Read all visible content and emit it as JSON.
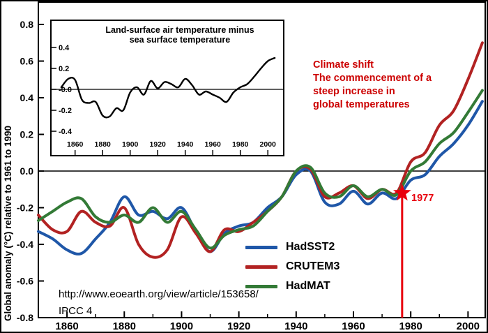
{
  "annotations": {
    "climate_shift_lines": [
      "Climate shift",
      "The commencement of a",
      "steep increase in",
      "global temperatures"
    ],
    "source_url": "http://www.eoearth.org/view/article/153658/",
    "source_ref": "IPCC 4"
  },
  "chart_data": [
    {
      "type": "line",
      "title": "",
      "xlabel": "",
      "ylabel": "Global anomaly (°C)  relative to 1961 to 1990",
      "xlim": [
        1850,
        2006
      ],
      "ylim": [
        -0.8,
        0.8
      ],
      "grid": false,
      "legend_position": "lower right",
      "x_ticks": [
        1860,
        1880,
        1900,
        1920,
        1940,
        1960,
        1980,
        2000
      ],
      "y_ticks": [
        0.8,
        0.6,
        0.4,
        0.2,
        0.0,
        -0.2,
        -0.4,
        -0.6,
        -0.8
      ],
      "y_tick_labels": [
        "0.8",
        "0.6",
        "0.4",
        "0.2",
        "0.0",
        "-0.2",
        "-0.4",
        "-0.6",
        "-0.8"
      ],
      "x": [
        1850,
        1855,
        1860,
        1865,
        1870,
        1875,
        1880,
        1885,
        1890,
        1895,
        1900,
        1905,
        1910,
        1915,
        1920,
        1925,
        1930,
        1935,
        1940,
        1945,
        1950,
        1955,
        1960,
        1965,
        1970,
        1975,
        1980,
        1985,
        1990,
        1995,
        2000,
        2005
      ],
      "series": [
        {
          "name": "HadSST2",
          "color": "#1f57a8",
          "values": [
            -0.33,
            -0.37,
            -0.43,
            -0.45,
            -0.37,
            -0.28,
            -0.14,
            -0.24,
            -0.22,
            -0.26,
            -0.2,
            -0.33,
            -0.44,
            -0.34,
            -0.3,
            -0.28,
            -0.2,
            -0.14,
            -0.02,
            0.0,
            -0.17,
            -0.18,
            -0.11,
            -0.18,
            -0.12,
            -0.15,
            -0.05,
            -0.02,
            0.08,
            0.15,
            0.25,
            0.38
          ]
        },
        {
          "name": "CRUTEM3",
          "color": "#b22222",
          "values": [
            -0.24,
            -0.32,
            -0.33,
            -0.22,
            -0.28,
            -0.3,
            -0.2,
            -0.4,
            -0.47,
            -0.43,
            -0.25,
            -0.34,
            -0.44,
            -0.32,
            -0.33,
            -0.28,
            -0.22,
            -0.14,
            0.0,
            0.01,
            -0.14,
            -0.12,
            -0.08,
            -0.15,
            -0.1,
            -0.12,
            0.05,
            0.1,
            0.25,
            0.33,
            0.5,
            0.7
          ]
        },
        {
          "name": "HadMAT",
          "color": "#337a36",
          "values": [
            -0.27,
            -0.22,
            -0.17,
            -0.15,
            -0.25,
            -0.28,
            -0.24,
            -0.28,
            -0.2,
            -0.28,
            -0.22,
            -0.32,
            -0.42,
            -0.35,
            -0.32,
            -0.3,
            -0.22,
            -0.14,
            0.0,
            0.02,
            -0.12,
            -0.14,
            -0.08,
            -0.14,
            -0.1,
            -0.13,
            0.0,
            0.05,
            0.15,
            0.21,
            0.32,
            0.44
          ]
        }
      ],
      "event": {
        "year": 1977,
        "value": -0.12,
        "label": "1977",
        "color": "#e8000d"
      }
    },
    {
      "type": "line",
      "title_lines": [
        "Land-surface air temperature minus",
        "sea surface temperature"
      ],
      "xlabel": "",
      "ylabel": "",
      "xlim": [
        1848,
        2008
      ],
      "ylim": [
        -0.45,
        0.45
      ],
      "grid": false,
      "x_ticks": [
        1860,
        1880,
        1900,
        1920,
        1940,
        1960,
        1980,
        2000
      ],
      "y_ticks": [
        0.4,
        0.2,
        0,
        -0.2,
        -0.4
      ],
      "y_tick_labels": [
        "0.4",
        "0.2",
        "-0.0",
        "-0.2",
        "-0.4"
      ],
      "x": [
        1850,
        1855,
        1860,
        1865,
        1870,
        1875,
        1880,
        1885,
        1890,
        1895,
        1900,
        1905,
        1910,
        1915,
        1920,
        1925,
        1930,
        1935,
        1940,
        1945,
        1950,
        1955,
        1960,
        1965,
        1970,
        1975,
        1980,
        1985,
        1990,
        1995,
        2000,
        2005
      ],
      "series": [
        {
          "name": "Land minus sea",
          "color": "#000000",
          "values": [
            0.02,
            0.1,
            0.09,
            -0.1,
            -0.13,
            -0.12,
            -0.25,
            -0.26,
            -0.18,
            -0.2,
            -0.03,
            0.02,
            -0.05,
            0.08,
            0.01,
            0.07,
            0.05,
            0.02,
            0.1,
            0.04,
            -0.05,
            -0.02,
            -0.05,
            -0.08,
            -0.12,
            -0.03,
            0.02,
            0.05,
            0.12,
            0.2,
            0.27,
            0.3
          ]
        }
      ]
    }
  ]
}
